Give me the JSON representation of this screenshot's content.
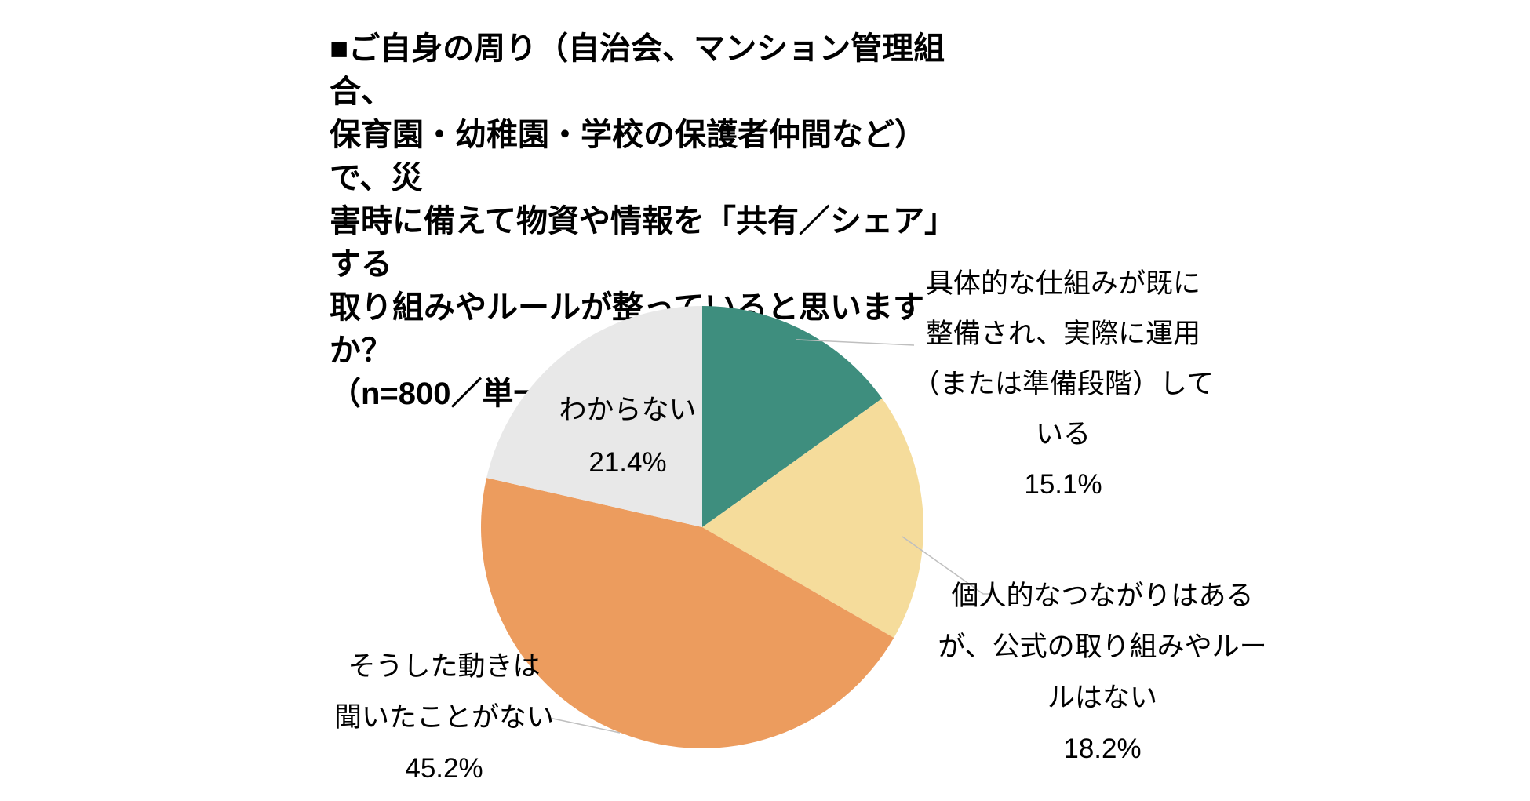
{
  "page": {
    "background": "#FFFFFF",
    "text_color": "#000000"
  },
  "title": {
    "text": "■ご自身の周り（自治会、マンション管理組合、\n保育園・幼稚園・学校の保護者仲間など）で、災\n害時に備えて物資や情報を「共有／シェア」する\n取り組みやルールが整っていると思いますか？\n（n=800／単一回答方式）"
  },
  "chart_data": {
    "type": "pie",
    "title": "ご自身の周り（自治会、マンション管理組合、保育園・幼稚園・学校の保護者仲間など）で、災害時に備えて物資や情報を「共有／シェア」する取り組みやルールが整っていると思いますか？",
    "sample_note": "n=800／単一回答方式",
    "start_angle_deg": 0,
    "direction": "clockwise",
    "legend_position": "outside-callouts",
    "segments": [
      {
        "label": "具体的な仕組みが既に整備され、実際に運用（または準備段階）している",
        "value": 15.1,
        "percent_text": "15.1%",
        "color": "#3E8E7E"
      },
      {
        "label": "個人的なつながりはあるが、公式の取り組みやルールはない",
        "value": 18.2,
        "percent_text": "18.2%",
        "color": "#F5DC9B"
      },
      {
        "label": "そうした動きは聞いたことがない",
        "value": 45.2,
        "percent_text": "45.2%",
        "color": "#EC9C5E"
      },
      {
        "label": "わからない",
        "value": 21.4,
        "percent_text": "21.4%",
        "color": "#E8E8E8"
      }
    ]
  },
  "labels": {
    "established": "具体的な仕組みが既に\n整備され、実際に運用\n（または準備段階）して\nいる\n15.1%",
    "personal": "個人的なつながりはある\nが、公式の取り組みやルー\nルはない\n18.2%",
    "never_heard": "そうした動きは\n聞いたことがない\n45.2%",
    "unknown": "わからない\n21.4%"
  },
  "style": {
    "leader_line_color": "#BFBFBF",
    "slice_colors": {
      "teal": "#3E8E7E",
      "tan": "#F5DC9B",
      "orange": "#EC9C5E",
      "gray": "#E8E8E8"
    }
  }
}
